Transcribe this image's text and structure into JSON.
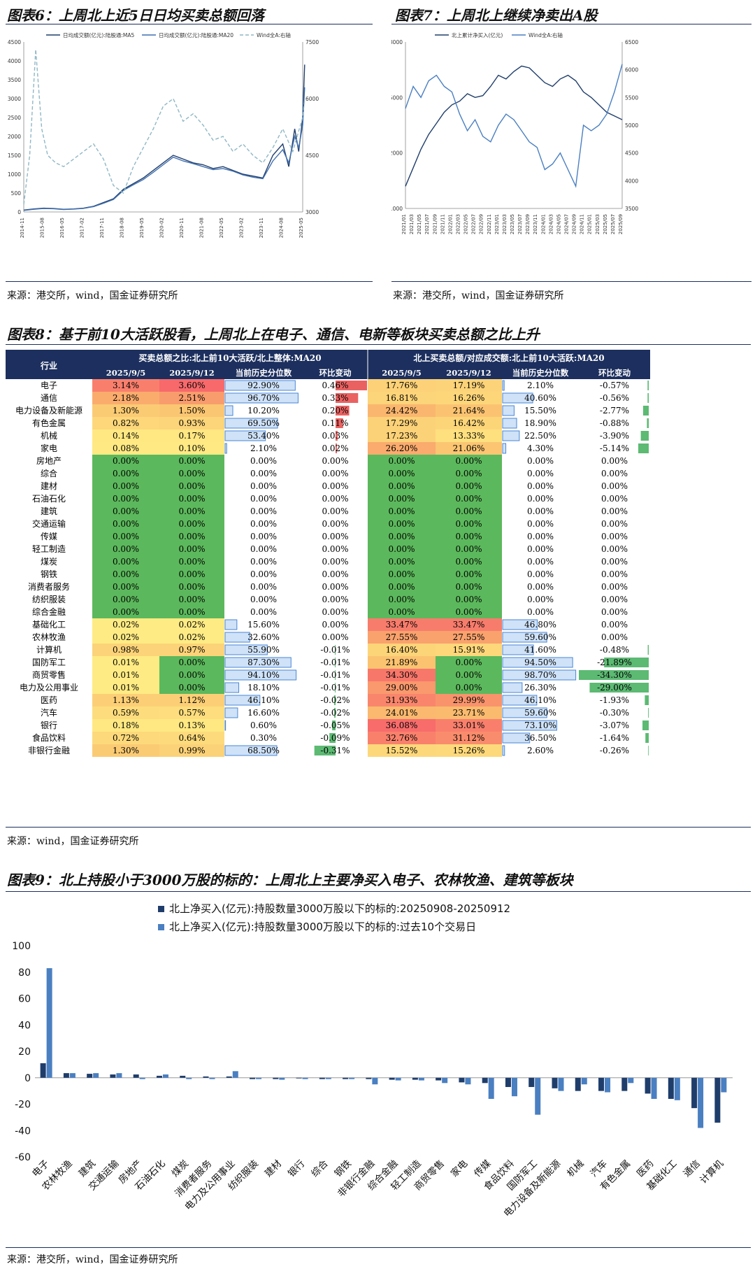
{
  "fig6": {
    "title": "图表6：上周北上近5日日均买卖总额回落",
    "source": "来源：港交所，wind，国金证券研究所",
    "chart_data": {
      "type": "line",
      "x_ticks": [
        "2014-11",
        "2015-08",
        "2016-05",
        "2017-02",
        "2017-11",
        "2018-08",
        "2019-05",
        "2020-02",
        "2020-11",
        "2021-08",
        "2022-05",
        "2023-02",
        "2023-11",
        "2024-08",
        "2025-05"
      ],
      "legend": [
        "日均成交额(亿元):陆股通:MA5",
        "日均成交额(亿元):陆股通:MA20",
        "Wind全A:右轴"
      ],
      "ylim_left": [
        0,
        4500
      ],
      "yticks_left": [
        0,
        500,
        1000,
        1500,
        2000,
        2500,
        3000,
        3500,
        4000,
        4500
      ],
      "ylim_right": [
        3000,
        7500
      ],
      "yticks_right": [
        3000,
        4500,
        6000,
        7500
      ],
      "series": [
        {
          "name": "日均成交额(亿元):陆股通:MA5",
          "axis": "left",
          "color": "#1f3d6b",
          "x": [
            0,
            0.5,
            1,
            1.5,
            2,
            2.5,
            3,
            3.5,
            4,
            4.5,
            5,
            5.5,
            6,
            6.5,
            7,
            7.5,
            8,
            8.5,
            9,
            9.5,
            10,
            10.5,
            11,
            11.5,
            12,
            12.5,
            13,
            13.3,
            13.6,
            13.8,
            14,
            14.1
          ],
          "y": [
            50,
            80,
            100,
            90,
            70,
            80,
            100,
            150,
            250,
            350,
            600,
            750,
            900,
            1100,
            1300,
            1500,
            1400,
            1300,
            1250,
            1150,
            1200,
            1100,
            1000,
            950,
            900,
            1500,
            1800,
            1200,
            2200,
            1600,
            2500,
            3900
          ]
        },
        {
          "name": "日均成交额(亿元):陆股通:MA20",
          "axis": "left",
          "color": "#3f6fb0",
          "x": [
            0,
            0.5,
            1,
            1.5,
            2,
            2.5,
            3,
            3.5,
            4,
            4.5,
            5,
            5.5,
            6,
            6.5,
            7,
            7.5,
            8,
            8.5,
            9,
            9.5,
            10,
            10.5,
            11,
            11.5,
            12,
            12.5,
            13,
            13.3,
            13.6,
            13.8,
            14,
            14.1
          ],
          "y": [
            40,
            70,
            90,
            85,
            65,
            75,
            95,
            140,
            230,
            330,
            570,
            720,
            860,
            1050,
            1250,
            1450,
            1350,
            1280,
            1200,
            1120,
            1150,
            1080,
            980,
            920,
            880,
            1350,
            1650,
            1300,
            2000,
            1700,
            2300,
            3300
          ]
        },
        {
          "name": "Wind全A:右轴",
          "axis": "right",
          "color": "#8fb7c5",
          "x": [
            0,
            0.3,
            0.6,
            0.9,
            1.2,
            1.6,
            2,
            2.5,
            3,
            3.5,
            4,
            4.5,
            5,
            5.5,
            6,
            6.5,
            7,
            7.5,
            8,
            8.5,
            9,
            9.5,
            10,
            10.5,
            11,
            11.5,
            12,
            12.5,
            13,
            13.5,
            14,
            14.1
          ],
          "y": [
            3200,
            4500,
            7300,
            5200,
            4500,
            4300,
            4200,
            4400,
            4600,
            4800,
            4400,
            3700,
            3500,
            4200,
            4700,
            5200,
            5800,
            6000,
            5400,
            5600,
            5300,
            4900,
            5000,
            4600,
            4800,
            4500,
            4300,
            4700,
            5200,
            4600,
            5500,
            6000
          ]
        }
      ]
    }
  },
  "fig7": {
    "title": "图表7：上周北上继续净卖出A股",
    "source": "来源：港交所，wind，国金证券研究所",
    "chart_data": {
      "type": "line",
      "x_ticks": [
        "2021/01",
        "2021/03",
        "2021/05",
        "2021/07",
        "2021/09",
        "2021/11",
        "2022/01",
        "2022/03",
        "2022/05",
        "2022/07",
        "2022/09",
        "2022/11",
        "2023/01",
        "2023/03",
        "2023/05",
        "2023/07",
        "2023/09",
        "2023/11",
        "2024/01",
        "2024/03",
        "2024/05",
        "2024/07",
        "2024/09",
        "2024/11",
        "2025/01",
        "2025/03",
        "2025/05",
        "2025/07",
        "2025/09"
      ],
      "legend": [
        "北上累计净买入(亿元)",
        "Wind全A:右轴"
      ],
      "ylim_left": [
        -1000,
        8000
      ],
      "yticks_left": [
        -1000,
        2000,
        5000,
        8000
      ],
      "ylim_right": [
        3500,
        6500
      ],
      "yticks_right": [
        3500,
        4000,
        4500,
        5000,
        5500,
        6000,
        6500
      ],
      "series": [
        {
          "name": "北上累计净买入(亿元)",
          "axis": "left",
          "color": "#1f3d6b",
          "x": [
            0,
            1,
            2,
            3,
            4,
            5,
            6,
            7,
            8,
            9,
            10,
            11,
            12,
            13,
            14,
            15,
            16,
            17,
            18,
            19,
            20,
            21,
            22,
            23,
            24,
            25,
            26,
            27,
            28
          ],
          "y": [
            200,
            1200,
            2200,
            3000,
            3600,
            4200,
            4600,
            4800,
            5200,
            5000,
            5100,
            5600,
            6200,
            6000,
            6400,
            6700,
            6600,
            6200,
            5800,
            5600,
            6000,
            6200,
            5900,
            5300,
            5000,
            4600,
            4200,
            4000,
            3800
          ]
        },
        {
          "name": "Wind全A:右轴",
          "axis": "right",
          "color": "#4a7fc1",
          "x": [
            0,
            1,
            2,
            3,
            4,
            5,
            6,
            7,
            8,
            9,
            10,
            11,
            12,
            13,
            14,
            15,
            16,
            17,
            18,
            19,
            20,
            21,
            22,
            23,
            24,
            25,
            26,
            27,
            28
          ],
          "y": [
            5300,
            5700,
            5500,
            5800,
            5900,
            5700,
            5600,
            5200,
            4900,
            5100,
            4800,
            4700,
            5000,
            5200,
            5100,
            4900,
            4700,
            4600,
            4200,
            4300,
            4500,
            4200,
            3900,
            5000,
            4900,
            5000,
            5200,
            5600,
            6100
          ]
        }
      ]
    }
  },
  "fig8": {
    "title": "图表8：基于前10大活跃股看，上周北上在电子、通信、电新等板块买卖总额之比上升",
    "source": "来源：wind，国金证券研究所",
    "chart_data": {
      "type": "table",
      "industry_header": "行业",
      "group1_header": "买卖总额之比:北上前10大活跃/北上整体:MA20",
      "group2_header": "北上买卖总额/对应成交额:北上前10大活跃:MA20",
      "sub_headers": [
        "2025/9/5",
        "2025/9/12",
        "当前历史分位数",
        "环比变动",
        "2025/9/5",
        "2025/9/12",
        "当前历史分位数",
        "环比变动"
      ],
      "rows": [
        [
          "电子",
          "3.14%",
          "3.60%",
          "92.90%",
          "0.46%",
          "17.76%",
          "17.19%",
          "2.10%",
          "-0.57%"
        ],
        [
          "通信",
          "2.18%",
          "2.51%",
          "96.70%",
          "0.33%",
          "16.81%",
          "16.26%",
          "40.60%",
          "-0.56%"
        ],
        [
          "电力设备及新能源",
          "1.30%",
          "1.50%",
          "10.20%",
          "0.20%",
          "24.42%",
          "21.64%",
          "15.50%",
          "-2.77%"
        ],
        [
          "有色金属",
          "0.82%",
          "0.93%",
          "69.50%",
          "0.11%",
          "17.29%",
          "16.42%",
          "18.90%",
          "-0.88%"
        ],
        [
          "机械",
          "0.14%",
          "0.17%",
          "53.40%",
          "0.03%",
          "17.23%",
          "13.33%",
          "22.50%",
          "-3.90%"
        ],
        [
          "家电",
          "0.08%",
          "0.10%",
          "2.10%",
          "0.02%",
          "26.20%",
          "21.06%",
          "4.30%",
          "-5.14%"
        ],
        [
          "房地产",
          "0.00%",
          "0.00%",
          "0.00%",
          "0.00%",
          "0.00%",
          "0.00%",
          "0.00%",
          "0.00%"
        ],
        [
          "综合",
          "0.00%",
          "0.00%",
          "0.00%",
          "0.00%",
          "0.00%",
          "0.00%",
          "0.00%",
          "0.00%"
        ],
        [
          "建材",
          "0.00%",
          "0.00%",
          "0.00%",
          "0.00%",
          "0.00%",
          "0.00%",
          "0.00%",
          "0.00%"
        ],
        [
          "石油石化",
          "0.00%",
          "0.00%",
          "0.00%",
          "0.00%",
          "0.00%",
          "0.00%",
          "0.00%",
          "0.00%"
        ],
        [
          "建筑",
          "0.00%",
          "0.00%",
          "0.00%",
          "0.00%",
          "0.00%",
          "0.00%",
          "0.00%",
          "0.00%"
        ],
        [
          "交通运输",
          "0.00%",
          "0.00%",
          "0.00%",
          "0.00%",
          "0.00%",
          "0.00%",
          "0.00%",
          "0.00%"
        ],
        [
          "传媒",
          "0.00%",
          "0.00%",
          "0.00%",
          "0.00%",
          "0.00%",
          "0.00%",
          "0.00%",
          "0.00%"
        ],
        [
          "轻工制造",
          "0.00%",
          "0.00%",
          "0.00%",
          "0.00%",
          "0.00%",
          "0.00%",
          "0.00%",
          "0.00%"
        ],
        [
          "煤炭",
          "0.00%",
          "0.00%",
          "0.00%",
          "0.00%",
          "0.00%",
          "0.00%",
          "0.00%",
          "0.00%"
        ],
        [
          "钢铁",
          "0.00%",
          "0.00%",
          "0.00%",
          "0.00%",
          "0.00%",
          "0.00%",
          "0.00%",
          "0.00%"
        ],
        [
          "消费者服务",
          "0.00%",
          "0.00%",
          "0.00%",
          "0.00%",
          "0.00%",
          "0.00%",
          "0.00%",
          "0.00%"
        ],
        [
          "纺织服装",
          "0.00%",
          "0.00%",
          "0.00%",
          "0.00%",
          "0.00%",
          "0.00%",
          "0.00%",
          "0.00%"
        ],
        [
          "综合金融",
          "0.00%",
          "0.00%",
          "0.00%",
          "0.00%",
          "0.00%",
          "0.00%",
          "0.00%",
          "0.00%"
        ],
        [
          "基础化工",
          "0.02%",
          "0.02%",
          "15.60%",
          "0.00%",
          "33.47%",
          "33.47%",
          "46.80%",
          "0.00%"
        ],
        [
          "农林牧渔",
          "0.02%",
          "0.02%",
          "32.60%",
          "0.00%",
          "27.55%",
          "27.55%",
          "59.60%",
          "0.00%"
        ],
        [
          "计算机",
          "0.98%",
          "0.97%",
          "55.90%",
          "-0.01%",
          "16.40%",
          "15.91%",
          "41.60%",
          "-0.48%"
        ],
        [
          "国防军工",
          "0.01%",
          "0.00%",
          "87.30%",
          "-0.01%",
          "21.89%",
          "0.00%",
          "94.50%",
          "-21.89%"
        ],
        [
          "商贸零售",
          "0.01%",
          "0.00%",
          "94.10%",
          "-0.01%",
          "34.30%",
          "0.00%",
          "98.70%",
          "-34.30%"
        ],
        [
          "电力及公用事业",
          "0.01%",
          "0.00%",
          "18.10%",
          "-0.01%",
          "29.00%",
          "0.00%",
          "26.30%",
          "-29.00%"
        ],
        [
          "医药",
          "1.13%",
          "1.12%",
          "46.10%",
          "-0.02%",
          "31.93%",
          "29.99%",
          "46.10%",
          "-1.93%"
        ],
        [
          "汽车",
          "0.59%",
          "0.57%",
          "16.60%",
          "-0.02%",
          "24.01%",
          "23.71%",
          "59.60%",
          "-0.30%"
        ],
        [
          "银行",
          "0.18%",
          "0.13%",
          "0.60%",
          "-0.05%",
          "36.08%",
          "33.01%",
          "73.10%",
          "-3.07%"
        ],
        [
          "食品饮料",
          "0.72%",
          "0.64%",
          "0.30%",
          "-0.09%",
          "32.76%",
          "31.12%",
          "36.50%",
          "-1.64%"
        ],
        [
          "非银行金融",
          "1.30%",
          "0.99%",
          "68.50%",
          "-0.31%",
          "15.52%",
          "15.26%",
          "2.60%",
          "-0.26%"
        ]
      ]
    }
  },
  "fig9": {
    "title": "图表9：北上持股小于3000万股的标的：上周北上主要净买入电子、农林牧渔、建筑等板块",
    "source": "来源：港交所，wind，国金证券研究所",
    "chart_data": {
      "type": "bar",
      "categories": [
        "电子",
        "农林牧渔",
        "建筑",
        "交通运输",
        "房地产",
        "石油石化",
        "煤炭",
        "消费者服务",
        "电力及公用事业",
        "纺织服装",
        "建材",
        "银行",
        "综合",
        "钢铁",
        "非银行金融",
        "综合金融",
        "轻工制造",
        "商贸零售",
        "家电",
        "传媒",
        "食品饮料",
        "国防军工",
        "电力设备及新能源",
        "机械",
        "汽车",
        "有色金属",
        "医药",
        "基础化工",
        "通信",
        "计算机"
      ],
      "ylim": [
        -60,
        100
      ],
      "yticks": [
        -60,
        -40,
        -20,
        0,
        20,
        40,
        60,
        80,
        100
      ],
      "series": [
        {
          "name": "北上净买入(亿元):持股数量3000万股以下的标的:20250908-20250912",
          "color": "#1f3d6b",
          "values": [
            11,
            3.5,
            3,
            2.5,
            2.5,
            1.5,
            1.5,
            1,
            1,
            -1,
            -1,
            -0.5,
            -1,
            -1,
            -1,
            -1.5,
            -1.5,
            -2,
            -3.5,
            -4,
            -7,
            -7,
            -8,
            -10,
            -10,
            -10,
            -12,
            -16,
            -23,
            -34
          ]
        },
        {
          "name": "北上净买入(亿元):持股数量3000万股以下的标的:过去10个交易日",
          "color": "#4a7fc1",
          "values": [
            83,
            3.5,
            3.5,
            3.5,
            -1,
            2.5,
            -1,
            -1,
            5,
            -1,
            -1.5,
            -1,
            -1,
            -1,
            -5,
            -2,
            -2,
            -4,
            -5,
            -16,
            -14,
            -28,
            -10,
            -5,
            -11,
            -4,
            -16,
            -17,
            -38,
            -11
          ]
        }
      ]
    }
  }
}
